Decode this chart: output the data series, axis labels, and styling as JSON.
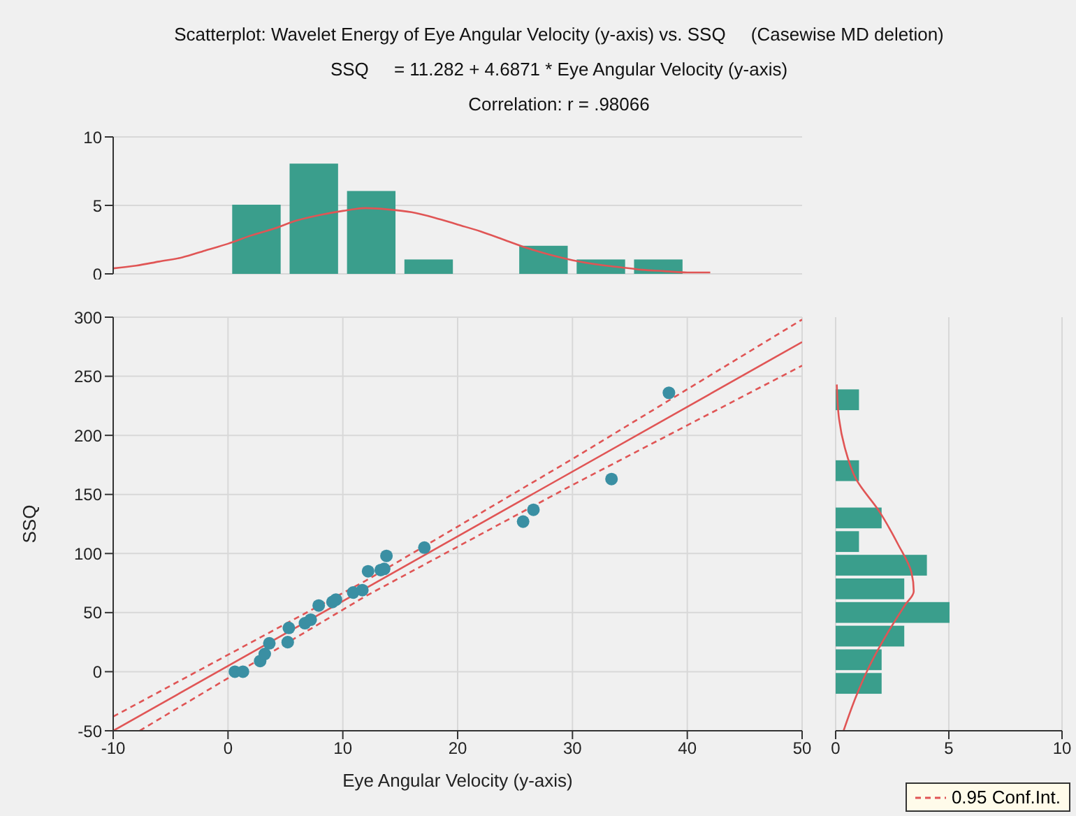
{
  "chart_data": [
    {
      "type": "histogram",
      "title": "Scatterplot: Wavelet Energy of Eye Angular Velocity (y-axis) vs. SSQ     (Casewise MD deletion)",
      "subtitle": "SSQ     = 11.282 + 4.6871 * Eye Angular Velocity (y-axis)",
      "annotations": [
        "Correlation: r = .98066"
      ],
      "xlim": [
        -10,
        50
      ],
      "xticks": [
        -10,
        0,
        10,
        20,
        30,
        40,
        50
      ],
      "ylim": [
        0,
        10
      ],
      "yticks": [
        0,
        5,
        10
      ],
      "grid": "y",
      "tick_labels": "y",
      "bins": [
        0,
        5,
        10,
        15,
        20,
        25,
        30,
        35,
        40
      ],
      "series": [
        {
          "type": "histogram",
          "color": "#3a9e8c",
          "values": [
            5,
            8,
            6,
            1,
            0,
            2,
            1,
            1
          ]
        },
        {
          "type": "line",
          "color": "#e05555",
          "x": [
            -10,
            -8,
            -6,
            -4,
            -2,
            0,
            2,
            4,
            6,
            8,
            10,
            12,
            14,
            16,
            18,
            20,
            22,
            24,
            26,
            28,
            30,
            32,
            34,
            36,
            38,
            40,
            42
          ],
          "values": [
            0.4,
            0.6,
            0.9,
            1.2,
            1.7,
            2.2,
            2.8,
            3.3,
            3.9,
            4.3,
            4.6,
            4.8,
            4.7,
            4.5,
            4.1,
            3.6,
            3.1,
            2.5,
            1.9,
            1.4,
            1.0,
            0.7,
            0.5,
            0.3,
            0.2,
            0.1,
            0.1
          ]
        }
      ]
    },
    {
      "type": "scatter",
      "xlabel": "Eye Angular Velocity (y-axis)",
      "ylabel": "SSQ",
      "xlim": [
        -10,
        50
      ],
      "xticks": [
        -10,
        0,
        10,
        20,
        30,
        40,
        50
      ],
      "ylim": [
        -50,
        300
      ],
      "yticks": [
        -50,
        0,
        50,
        100,
        150,
        200,
        250,
        300
      ],
      "grid": true,
      "legend": "bottom right",
      "series": [
        {
          "type": "scatter",
          "marker": "circle",
          "color": "#3a8fa3",
          "x": [
            0.6,
            1.3,
            2.8,
            3.2,
            3.6,
            5.2,
            5.3,
            6.7,
            7.2,
            7.9,
            9.1,
            9.4,
            10.9,
            11.7,
            12.2,
            13.3,
            13.6,
            13.8,
            17.1,
            25.7,
            26.6,
            33.4,
            38.4
          ],
          "values": [
            0,
            0,
            9,
            15,
            24,
            25,
            37,
            41,
            44,
            56,
            59,
            61,
            67,
            69,
            85,
            86,
            87,
            98,
            105,
            127,
            137,
            163,
            236
          ]
        },
        {
          "type": "line",
          "color": "#e05555",
          "line_style": "solid",
          "x": [
            -10,
            50
          ],
          "values": [
            -50,
            279
          ]
        },
        {
          "type": "line",
          "name": "0.95 Conf.Int.",
          "color": "#e05555",
          "line_style": "dashed",
          "x": [
            -10,
            12,
            30,
            50
          ],
          "values": [
            -38,
            77,
            180,
            298
          ]
        },
        {
          "type": "line",
          "color": "#e05555",
          "line_style": "dashed",
          "x": [
            -7.7,
            12,
            30,
            50
          ],
          "values": [
            -50,
            64,
            158,
            259
          ]
        }
      ]
    },
    {
      "type": "histogram",
      "orientation": "horizontal",
      "xlim": [
        0,
        10
      ],
      "xticks": [
        0,
        5,
        10
      ],
      "ylim": [
        -50,
        300
      ],
      "yticks": [
        -50,
        0,
        50,
        100,
        150,
        200,
        250,
        300
      ],
      "grid": "x",
      "tick_labels": "x",
      "bins": [
        -20,
        0,
        20,
        40,
        60,
        80,
        100,
        120,
        140,
        160,
        180,
        200,
        220,
        240
      ],
      "series": [
        {
          "type": "histogram",
          "color": "#3a9e8c",
          "values": [
            2,
            2,
            3,
            5,
            3,
            4,
            1,
            2,
            0,
            1,
            0,
            0,
            1
          ]
        },
        {
          "type": "line",
          "color": "#e05555",
          "x": [
            -50,
            -21,
            5,
            33,
            56,
            68,
            84,
            108,
            135,
            163,
            190,
            214,
            243
          ],
          "values": [
            0.35,
            0.9,
            1.5,
            2.3,
            3.05,
            3.45,
            3.35,
            2.75,
            1.95,
            0.9,
            0.4,
            0.15,
            0.05
          ]
        }
      ]
    }
  ]
}
